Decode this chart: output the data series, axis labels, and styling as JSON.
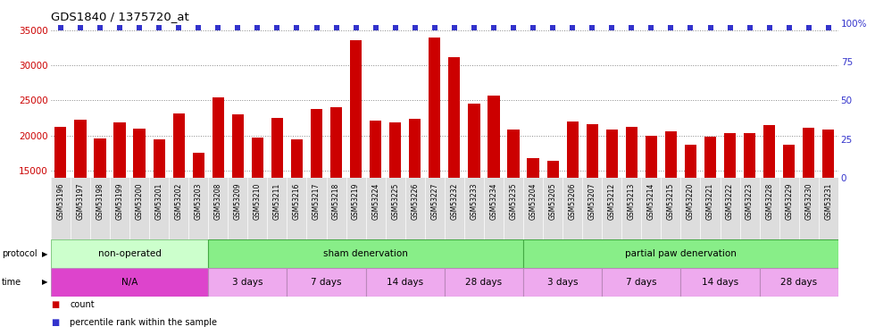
{
  "title": "GDS1840 / 1375720_at",
  "samples": [
    "GSM53196",
    "GSM53197",
    "GSM53198",
    "GSM53199",
    "GSM53200",
    "GSM53201",
    "GSM53202",
    "GSM53203",
    "GSM53208",
    "GSM53209",
    "GSM53210",
    "GSM53211",
    "GSM53216",
    "GSM53217",
    "GSM53218",
    "GSM53219",
    "GSM53224",
    "GSM53225",
    "GSM53226",
    "GSM53227",
    "GSM53232",
    "GSM53233",
    "GSM53234",
    "GSM53235",
    "GSM53204",
    "GSM53205",
    "GSM53206",
    "GSM53207",
    "GSM53212",
    "GSM53213",
    "GSM53214",
    "GSM53215",
    "GSM53220",
    "GSM53221",
    "GSM53222",
    "GSM53223",
    "GSM53228",
    "GSM53229",
    "GSM53230",
    "GSM53231"
  ],
  "counts": [
    21200,
    22300,
    19600,
    21900,
    21000,
    19400,
    23100,
    17600,
    25500,
    23000,
    19700,
    22500,
    19400,
    23800,
    24100,
    33600,
    22100,
    21900,
    22400,
    34000,
    31200,
    24600,
    25700,
    20900,
    16800,
    16400,
    22000,
    21600,
    20900,
    21200,
    20000,
    20600,
    18700,
    19800,
    20300,
    20300,
    21500,
    18700,
    21100,
    20800
  ],
  "bar_color": "#cc0000",
  "dot_color": "#3333cc",
  "ylim_left": [
    14000,
    36000
  ],
  "yticks_left": [
    15000,
    20000,
    25000,
    30000,
    35000
  ],
  "ylim_right": [
    0,
    100
  ],
  "yticks_right": [
    0,
    25,
    50,
    75,
    100
  ],
  "yright_labels": [
    "0",
    "25",
    "50",
    "75",
    "100%"
  ],
  "grid_color": "#888888",
  "protocol_groups": [
    {
      "label": "non-operated",
      "start": 0,
      "end": 8,
      "color": "#ccffcc",
      "border": "#88cc88"
    },
    {
      "label": "sham denervation",
      "start": 8,
      "end": 24,
      "color": "#88ee88",
      "border": "#44aa44"
    },
    {
      "label": "partial paw denervation",
      "start": 24,
      "end": 40,
      "color": "#88ee88",
      "border": "#44aa44"
    }
  ],
  "time_groups": [
    {
      "label": "N/A",
      "start": 0,
      "end": 8,
      "color": "#dd44cc"
    },
    {
      "label": "3 days",
      "start": 8,
      "end": 12,
      "color": "#eeaaee"
    },
    {
      "label": "7 days",
      "start": 12,
      "end": 16,
      "color": "#eeaaee"
    },
    {
      "label": "14 days",
      "start": 16,
      "end": 20,
      "color": "#eeaaee"
    },
    {
      "label": "28 days",
      "start": 20,
      "end": 24,
      "color": "#eeaaee"
    },
    {
      "label": "3 days",
      "start": 24,
      "end": 28,
      "color": "#eeaaee"
    },
    {
      "label": "7 days",
      "start": 28,
      "end": 32,
      "color": "#eeaaee"
    },
    {
      "label": "14 days",
      "start": 32,
      "end": 36,
      "color": "#eeaaee"
    },
    {
      "label": "28 days",
      "start": 36,
      "end": 40,
      "color": "#eeaaee"
    }
  ],
  "legend_items": [
    {
      "label": "count",
      "color": "#cc0000"
    },
    {
      "label": "percentile rank within the sample",
      "color": "#3333cc"
    }
  ],
  "fig_width": 9.8,
  "fig_height": 3.75,
  "fig_dpi": 100
}
